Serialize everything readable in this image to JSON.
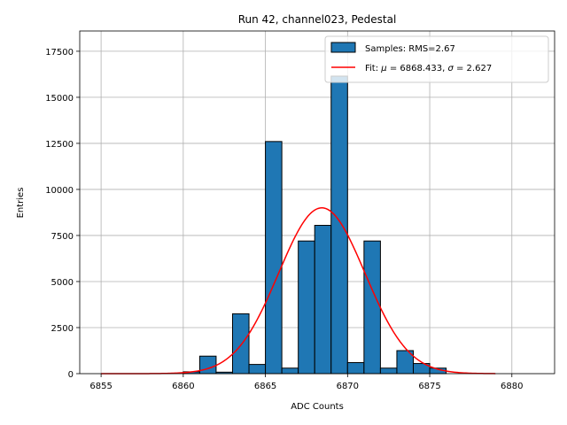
{
  "chart_data": {
    "type": "bar",
    "title": "Run 42, channel023, Pedestal",
    "xlabel": "ADC Counts",
    "ylabel": "Entries",
    "xlim": [
      6853.7,
      6882.6
    ],
    "ylim": [
      0,
      18600
    ],
    "xticks": [
      6855,
      6860,
      6865,
      6870,
      6875,
      6880
    ],
    "yticks": [
      0,
      2500,
      5000,
      7500,
      10000,
      12500,
      15000,
      17500
    ],
    "grid": true,
    "legend_position": "upper right",
    "bar_color": "#1f77b4",
    "fit_color": "#ff0000",
    "bins": [
      {
        "x0": 6860.0,
        "x1": 6861.0,
        "value": 100
      },
      {
        "x0": 6861.0,
        "x1": 6862.0,
        "value": 950
      },
      {
        "x0": 6862.0,
        "x1": 6863.0,
        "value": 80
      },
      {
        "x0": 6863.0,
        "x1": 6864.0,
        "value": 3250
      },
      {
        "x0": 6864.0,
        "x1": 6865.0,
        "value": 500
      },
      {
        "x0": 6865.0,
        "x1": 6866.0,
        "value": 12600
      },
      {
        "x0": 6866.0,
        "x1": 6867.0,
        "value": 300
      },
      {
        "x0": 6867.0,
        "x1": 6868.0,
        "value": 7200
      },
      {
        "x0": 6868.0,
        "x1": 6869.0,
        "value": 8050
      },
      {
        "x0": 6869.0,
        "x1": 6870.0,
        "value": 16150
      },
      {
        "x0": 6870.0,
        "x1": 6871.0,
        "value": 600
      },
      {
        "x0": 6871.0,
        "x1": 6872.0,
        "value": 7200
      },
      {
        "x0": 6872.0,
        "x1": 6873.0,
        "value": 300
      },
      {
        "x0": 6873.0,
        "x1": 6874.0,
        "value": 1250
      },
      {
        "x0": 6874.0,
        "x1": 6875.0,
        "value": 550
      },
      {
        "x0": 6875.0,
        "x1": 6876.0,
        "value": 300
      }
    ],
    "fit": {
      "mu": 6868.433,
      "sigma": 2.627,
      "amplitude": 9000,
      "x_range": [
        6855,
        6879
      ]
    },
    "legend": {
      "samples_label": "Samples: RMS=2.67",
      "fit_label_prefix": "Fit: ",
      "fit_label_mu_symbol": "μ",
      "fit_label_mu_value": " = 6868.433, ",
      "fit_label_sigma_symbol": "σ",
      "fit_label_sigma_value": " = 2.627"
    }
  }
}
